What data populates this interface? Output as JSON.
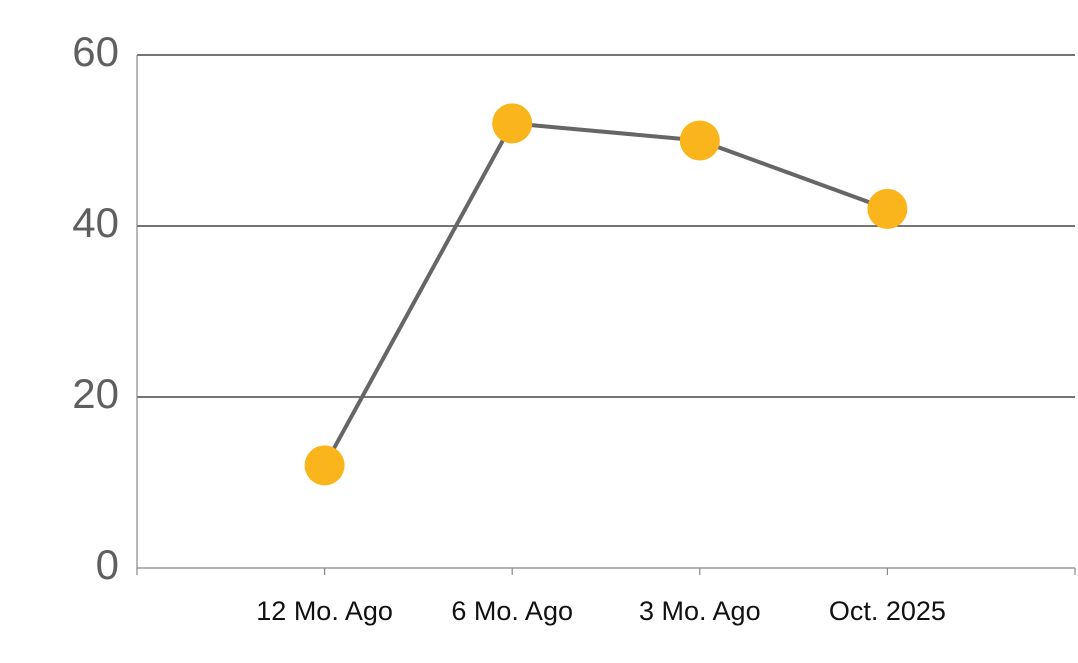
{
  "chart_data": {
    "type": "line",
    "categories": [
      "12 Mo. Ago",
      "6 Mo. Ago",
      "3 Mo. Ago",
      "Oct. 2025"
    ],
    "series": [
      {
        "values": [
          12,
          52,
          50,
          42
        ],
        "color": "#666666",
        "marker_color": "#f9b51b"
      }
    ],
    "ylim": [
      0,
      60
    ],
    "yticks": [
      0,
      20,
      40,
      60
    ],
    "grid": true
  }
}
